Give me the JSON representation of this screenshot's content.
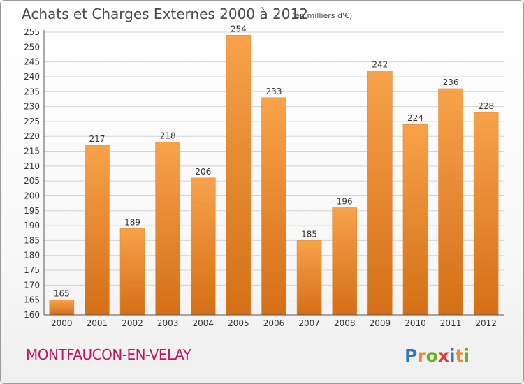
{
  "title": "Achats et Charges Externes 2000 à 2012",
  "subtitle": "(en milliers d'€)",
  "place": "MONTFAUCON-EN-VELAY",
  "logo": {
    "letters": [
      "P",
      "r",
      "o",
      "x",
      "i",
      "t",
      "i"
    ]
  },
  "colors": {
    "bar_light": "#f7a24a",
    "bar_dark": "#d46f17",
    "logo_letters": [
      "#2e7bbf",
      "#f08a24",
      "#6ab023",
      "#e53935",
      "#2e7bbf",
      "#f08a24",
      "#6ab023"
    ]
  },
  "chart_data": {
    "type": "bar",
    "categories": [
      "2000",
      "2001",
      "2002",
      "2003",
      "2004",
      "2005",
      "2006",
      "2007",
      "2008",
      "2009",
      "2010",
      "2011",
      "2012"
    ],
    "values": [
      165,
      217,
      189,
      218,
      206,
      254,
      233,
      185,
      196,
      242,
      224,
      236,
      228
    ],
    "title": "Achats et Charges Externes 2000 à 2012",
    "xlabel": "",
    "ylabel": "",
    "ylim": [
      160,
      255
    ],
    "yticks": [
      160,
      165,
      170,
      175,
      180,
      185,
      190,
      195,
      200,
      205,
      210,
      215,
      220,
      225,
      230,
      235,
      240,
      245,
      250,
      255
    ],
    "grid": true,
    "data_labels": true
  }
}
